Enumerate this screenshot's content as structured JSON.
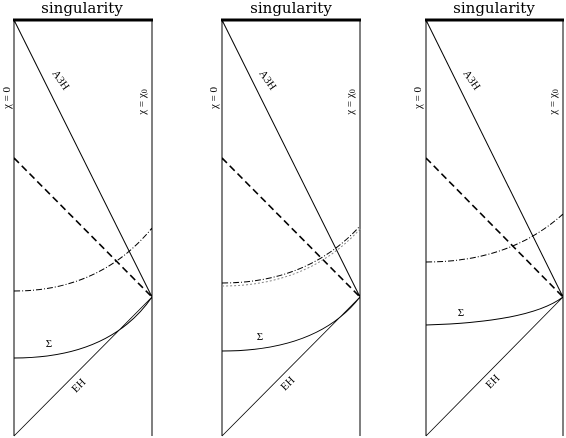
{
  "panels": [
    {
      "singularity_label": "singularity",
      "axis_left_label": "χ = 0",
      "axis_right_label_main": "χ = χ",
      "axis_right_label_sub": "0",
      "ah_label": "A3H",
      "sigma_label": "Σ",
      "eh_label": "EH"
    },
    {
      "singularity_label": "singularity",
      "axis_left_label": "χ = 0",
      "axis_right_label_main": "χ = χ",
      "axis_right_label_sub": "0",
      "ah_label": "A3H",
      "sigma_label": "Σ",
      "eh_label": "EH"
    },
    {
      "singularity_label": "singularity",
      "axis_left_label": "χ = 0",
      "axis_right_label_main": "χ = χ",
      "axis_right_label_sub": "0",
      "ah_label": "A3H",
      "sigma_label": "Σ",
      "eh_label": "EH"
    }
  ]
}
